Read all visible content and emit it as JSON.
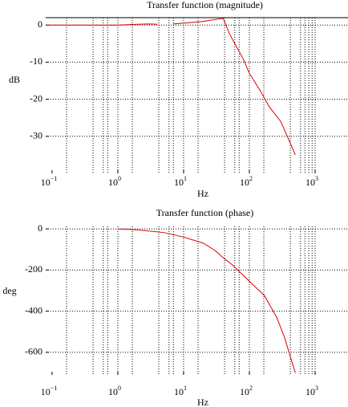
{
  "chart_data": [
    {
      "type": "line",
      "title": "Transfer function (magnitude)",
      "xlabel": "Hz",
      "ylabel": "dB",
      "xscale": "log",
      "xlim": [
        0.08,
        3162
      ],
      "ylim": [
        -40,
        2
      ],
      "top_border": true,
      "color": "#dd0000",
      "xticks": [
        {
          "value": 0.1,
          "label": "10",
          "exponent": "−1"
        },
        {
          "value": 1,
          "label": "10",
          "exponent": "0"
        },
        {
          "value": 10,
          "label": "10",
          "exponent": "1"
        },
        {
          "value": 100,
          "label": "10",
          "exponent": "2"
        },
        {
          "value": 1000,
          "label": "10",
          "exponent": "3"
        }
      ],
      "xgrid": [
        0.166,
        0.42,
        0.6,
        0.7,
        1,
        1.66,
        4.2,
        6,
        7,
        10,
        16.6,
        42,
        60,
        70,
        100,
        166,
        420,
        600,
        700,
        800,
        900,
        1000
      ],
      "yticks": [
        0,
        -10,
        -20,
        -30
      ],
      "x": [
        0.08,
        0.5,
        1,
        2,
        3,
        4,
        5,
        7,
        10,
        20,
        30,
        40,
        50,
        60,
        80,
        100,
        150,
        200,
        300,
        400,
        500
      ],
      "values": [
        0,
        0,
        0,
        0.2,
        0.3,
        0.2,
        null,
        0.3,
        0.5,
        1,
        1.5,
        1.8,
        -2.4,
        -5,
        -9,
        -13,
        -18,
        -22,
        -26,
        -31,
        -35
      ]
    },
    {
      "type": "line",
      "title": "Transfer function (phase)",
      "xlabel": "Hz",
      "ylabel": "deg",
      "xscale": "log",
      "xlim": [
        0.08,
        3162
      ],
      "ylim": [
        -710,
        12
      ],
      "top_border": false,
      "color": "#dd0000",
      "xticks": [
        {
          "value": 0.1,
          "label": "10",
          "exponent": "−1"
        },
        {
          "value": 1,
          "label": "10",
          "exponent": "0"
        },
        {
          "value": 10,
          "label": "10",
          "exponent": "1"
        },
        {
          "value": 100,
          "label": "10",
          "exponent": "2"
        },
        {
          "value": 1000,
          "label": "10",
          "exponent": "3"
        }
      ],
      "xgrid": [
        0.166,
        0.42,
        0.6,
        0.7,
        1,
        1.66,
        4.2,
        6,
        7,
        10,
        16.6,
        42,
        60,
        70,
        100,
        166,
        420,
        600,
        700,
        800,
        900,
        1000
      ],
      "yticks": [
        0,
        -200,
        -400,
        -600
      ],
      "x": [
        1,
        2,
        5,
        10,
        20,
        30,
        40,
        55,
        100,
        170,
        260,
        340,
        500
      ],
      "values": [
        0,
        -5,
        -18,
        -40,
        -70,
        -105,
        -140,
        -175,
        -255,
        -325,
        -430,
        -525,
        -700
      ]
    }
  ]
}
